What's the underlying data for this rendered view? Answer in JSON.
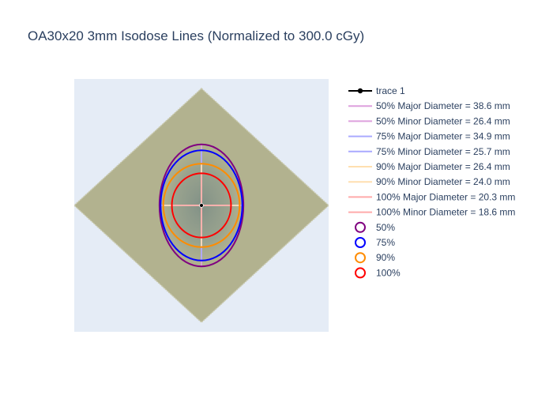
{
  "chart_data": {
    "type": "scatter",
    "title": "OA30x20 3mm Isodose Lines (Normalized to 300.0 cGy)",
    "xlabel": "",
    "ylabel": "",
    "xlim": [
      -40,
      40
    ],
    "ylim": [
      -40,
      40
    ],
    "grid": false,
    "legend_position": "right",
    "plot_background": "#e5ecf6",
    "dose_map": {
      "shape": "diamond",
      "center": [
        0,
        0
      ],
      "half_diagonal_x": 40,
      "half_diagonal_y": 37,
      "color": "#b2b28f"
    },
    "center_point": {
      "name": "trace 1",
      "x": 0,
      "y": 0,
      "color": "#000000"
    },
    "isodose_contours": [
      {
        "name": "50%",
        "level": 50,
        "color": "#800080",
        "major_diameter_mm": 38.6,
        "minor_diameter_mm": 26.4
      },
      {
        "name": "75%",
        "level": 75,
        "color": "#0000ff",
        "major_diameter_mm": 34.9,
        "minor_diameter_mm": 25.7
      },
      {
        "name": "90%",
        "level": 90,
        "color": "#ff8c00",
        "major_diameter_mm": 26.4,
        "minor_diameter_mm": 24.0
      },
      {
        "name": "100%",
        "level": 100,
        "color": "#ff0000",
        "major_diameter_mm": 20.3,
        "minor_diameter_mm": 18.6
      }
    ],
    "diameter_lines": [
      {
        "name": "50% Major Diameter = 38.6 mm",
        "color": "#dda0dd",
        "orientation": "vertical",
        "length_mm": 38.6
      },
      {
        "name": "50% Minor Diameter = 26.4 mm",
        "color": "#dda0dd",
        "orientation": "horizontal",
        "length_mm": 26.4
      },
      {
        "name": "75% Major Diameter = 34.9 mm",
        "color": "#aaaaff",
        "orientation": "vertical",
        "length_mm": 34.9
      },
      {
        "name": "75% Minor Diameter = 25.7 mm",
        "color": "#aaaaff",
        "orientation": "horizontal",
        "length_mm": 25.7
      },
      {
        "name": "90% Major Diameter = 26.4 mm",
        "color": "#ffdfb0",
        "orientation": "vertical",
        "length_mm": 26.4
      },
      {
        "name": "90% Minor Diameter = 24.0 mm",
        "color": "#ffdfb0",
        "orientation": "horizontal",
        "length_mm": 24.0
      },
      {
        "name": "100% Major Diameter = 20.3 mm",
        "color": "#ffaaaa",
        "orientation": "vertical",
        "length_mm": 20.3
      },
      {
        "name": "100% Minor Diameter = 18.6 mm",
        "color": "#ffaaaa",
        "orientation": "horizontal",
        "length_mm": 18.6
      }
    ],
    "legend": [
      {
        "label": "trace 1",
        "symbol": "line-marker",
        "color": "#000000"
      },
      {
        "label": "50% Major Diameter = 38.6 mm",
        "symbol": "line",
        "color": "#dda0dd"
      },
      {
        "label": "50% Minor Diameter = 26.4 mm",
        "symbol": "line",
        "color": "#dda0dd"
      },
      {
        "label": "75% Major Diameter = 34.9 mm",
        "symbol": "line",
        "color": "#aaaaff"
      },
      {
        "label": "75% Minor Diameter = 25.7 mm",
        "symbol": "line",
        "color": "#aaaaff"
      },
      {
        "label": "90% Major Diameter = 26.4 mm",
        "symbol": "line",
        "color": "#ffdfb0"
      },
      {
        "label": "90% Minor Diameter = 24.0 mm",
        "symbol": "line",
        "color": "#ffdfb0"
      },
      {
        "label": "100% Major Diameter = 20.3 mm",
        "symbol": "line",
        "color": "#ffaaaa"
      },
      {
        "label": "100% Minor Diameter = 18.6 mm",
        "symbol": "line",
        "color": "#ffaaaa"
      },
      {
        "label": "50%",
        "symbol": "circle-open",
        "color": "#800080"
      },
      {
        "label": "75%",
        "symbol": "circle-open",
        "color": "#0000ff"
      },
      {
        "label": "90%",
        "symbol": "circle-open",
        "color": "#ff8c00"
      },
      {
        "label": "100%",
        "symbol": "circle-open",
        "color": "#ff0000"
      }
    ]
  }
}
